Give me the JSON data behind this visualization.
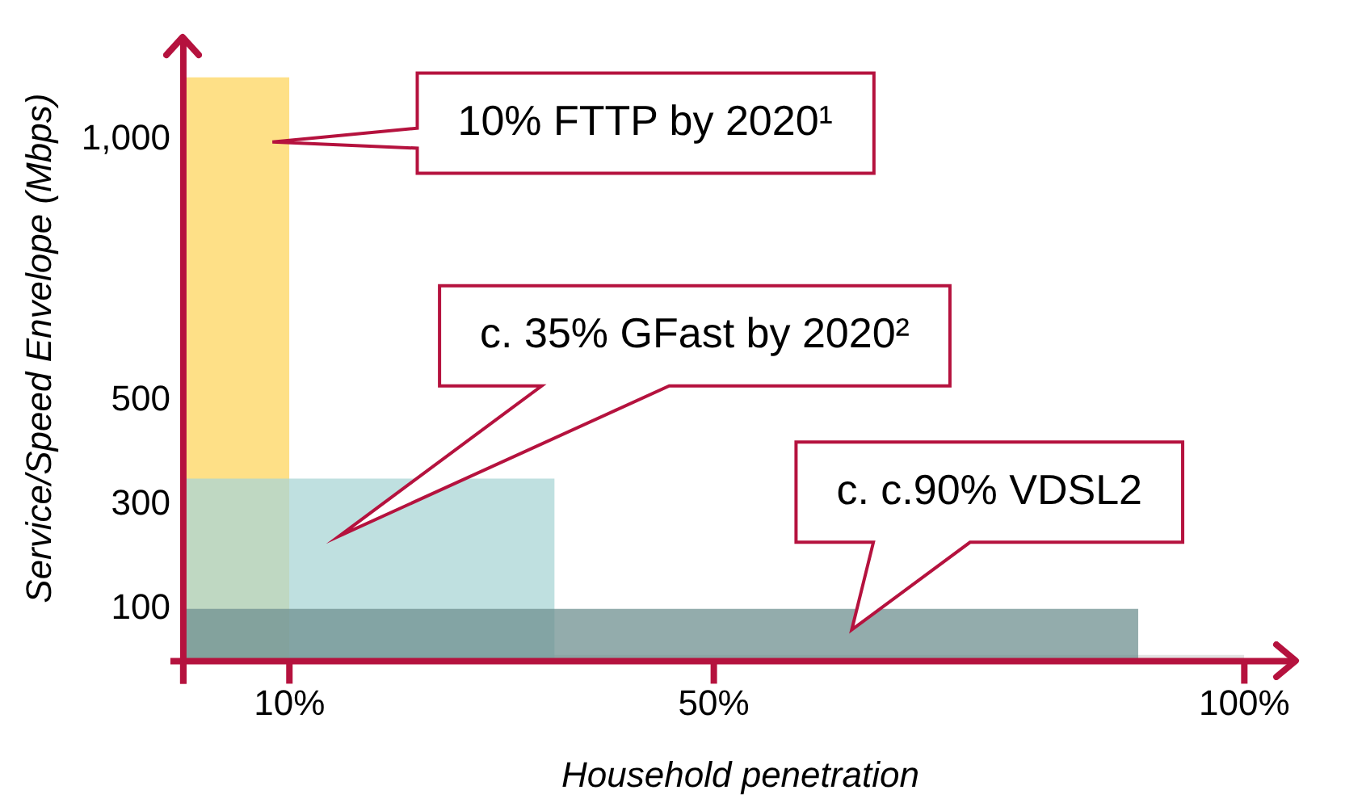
{
  "chart_data": {
    "type": "area",
    "xlabel": "Household penetration",
    "ylabel": "Service/Speed Envelope (Mbps)",
    "xlim": [
      0,
      105
    ],
    "xticks": [
      {
        "value": 0,
        "label": null
      },
      {
        "value": 10,
        "label": "10%"
      },
      {
        "value": 50,
        "label": "50%"
      },
      {
        "value": 100,
        "label": "100%"
      }
    ],
    "ylim": [
      0,
      1200
    ],
    "yticks": [
      100,
      300,
      500,
      {
        "value": 1000,
        "label": "1,000"
      }
    ],
    "grid": false,
    "legend": false,
    "marker": "none",
    "series": [
      {
        "color": "#d9d9d9",
        "x": [
          0,
          100
        ],
        "values": [
          12,
          12
        ]
      },
      {
        "color": "#fdd55f",
        "x": [
          0,
          10
        ],
        "values": [
          1120,
          1120
        ]
      },
      {
        "color": "#a9d6d6",
        "x": [
          0,
          35
        ],
        "values": [
          350,
          350
        ]
      },
      {
        "color": "#6f9090",
        "x": [
          0,
          90
        ],
        "values": [
          100,
          100
        ]
      }
    ],
    "annotations": [
      "10% FTTP by 2020¹",
      "c. 35% GFast by 2020²",
      "c. c.90% VDSL2"
    ]
  }
}
